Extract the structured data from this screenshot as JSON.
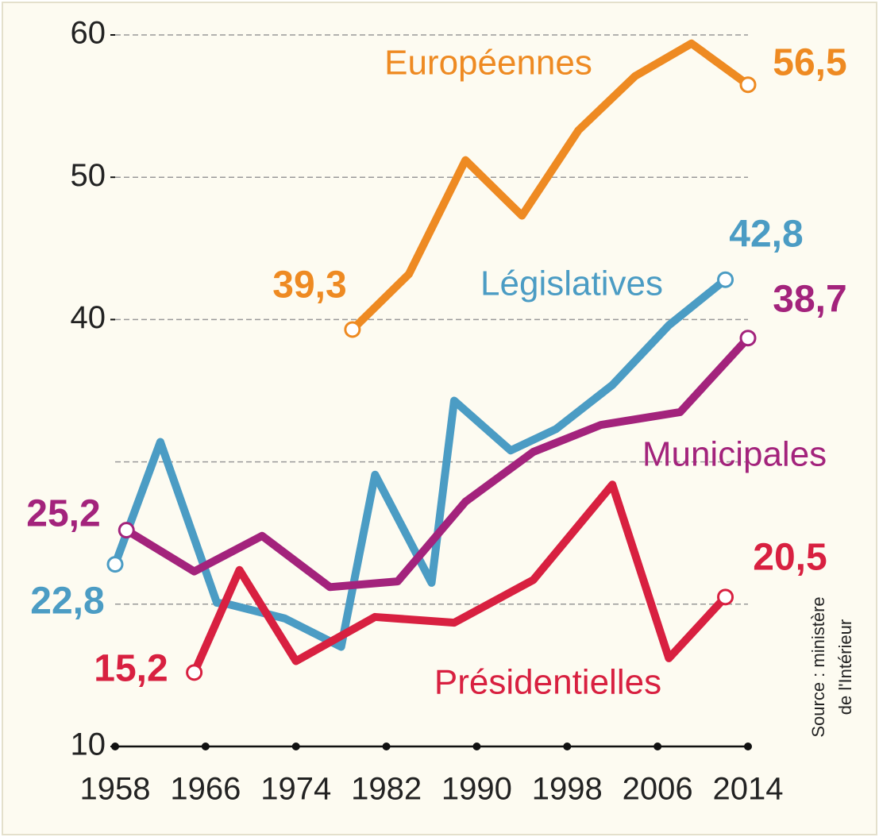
{
  "chart_data": {
    "type": "line",
    "ylim": [
      10,
      60
    ],
    "yticks": [
      10,
      40,
      50,
      60
    ],
    "ygrid": [
      20,
      30,
      40,
      50,
      60
    ],
    "grid": true,
    "xlim": [
      1958,
      2014
    ],
    "xticks": [
      1958,
      1966,
      1974,
      1982,
      1990,
      1998,
      2006,
      2014
    ],
    "series": [
      {
        "name": "Européennes",
        "color": "#ee8a22",
        "x": [
          1979,
          1984,
          1989,
          1994,
          1999,
          2004,
          2009,
          2014
        ],
        "values": [
          39.3,
          43.2,
          51.2,
          47.3,
          53.3,
          57.1,
          59.4,
          56.5
        ],
        "value_labels": [
          "39,3",
          null,
          null,
          null,
          null,
          null,
          null,
          "56,5"
        ]
      },
      {
        "name": "Législatives",
        "color": "#4b9cc4",
        "x": [
          1958,
          1962,
          1967,
          1968,
          1973,
          1978,
          1981,
          1986,
          1988,
          1993,
          1997,
          2002,
          2007,
          2012
        ],
        "values": [
          22.8,
          31.4,
          20.1,
          20.0,
          19.0,
          17.0,
          29.1,
          21.5,
          34.3,
          30.8,
          32.3,
          35.4,
          39.6,
          42.8
        ],
        "value_labels": [
          "22,8",
          null,
          null,
          null,
          null,
          null,
          null,
          null,
          null,
          null,
          null,
          null,
          null,
          "42,8"
        ]
      },
      {
        "name": "Municipales",
        "color": "#a3237c",
        "x": [
          1959,
          1965,
          1971,
          1977,
          1983,
          1989,
          1995,
          2001,
          2008,
          2014
        ],
        "values": [
          25.2,
          22.3,
          24.8,
          21.2,
          21.6,
          27.2,
          30.7,
          32.6,
          33.5,
          38.7
        ],
        "value_labels": [
          "25,2",
          null,
          null,
          null,
          null,
          null,
          null,
          null,
          null,
          "38,7"
        ]
      },
      {
        "name": "Présidentielles",
        "color": "#d82040",
        "x": [
          1965,
          1969,
          1974,
          1981,
          1988,
          1995,
          2002,
          2007,
          2012
        ],
        "values": [
          15.2,
          22.4,
          16.0,
          19.1,
          18.7,
          21.7,
          28.4,
          16.2,
          20.5
        ],
        "value_labels": [
          "15,2",
          null,
          null,
          null,
          null,
          null,
          null,
          null,
          "20,5"
        ]
      }
    ],
    "source": [
      "Source : ministère",
      "de l'Intérieur"
    ]
  }
}
